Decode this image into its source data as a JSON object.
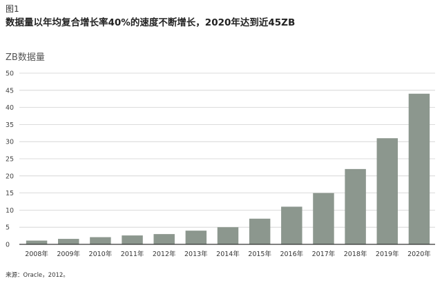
{
  "figure_label": "图1",
  "title": "数据量以年均复合增长率40%的速度不断增长，2020年达到近45ZB",
  "source": "来源：Oracle，2012。",
  "colors": {
    "bar": "#8c978e",
    "axis": "#333333",
    "grid": "#cfcfcf"
  },
  "chart_data": {
    "type": "bar",
    "title": "数据量以年均复合增长率40%的速度不断增长，2020年达到近45ZB",
    "ylabel": "ZB数据量",
    "xlabel": "",
    "ylim": [
      0,
      50
    ],
    "yticks": [
      0,
      5,
      10,
      15,
      20,
      25,
      30,
      35,
      40,
      45,
      50
    ],
    "grid": true,
    "categories": [
      "2008年",
      "2009年",
      "2010年",
      "2011年",
      "2012年",
      "2013年",
      "2014年",
      "2015年",
      "2016年",
      "2017年",
      "2018年",
      "2019年",
      "2020年"
    ],
    "values": [
      1.1,
      1.6,
      2.1,
      2.6,
      3.0,
      4.0,
      5.0,
      7.5,
      11.0,
      15.0,
      22.0,
      31.0,
      44.0
    ]
  }
}
